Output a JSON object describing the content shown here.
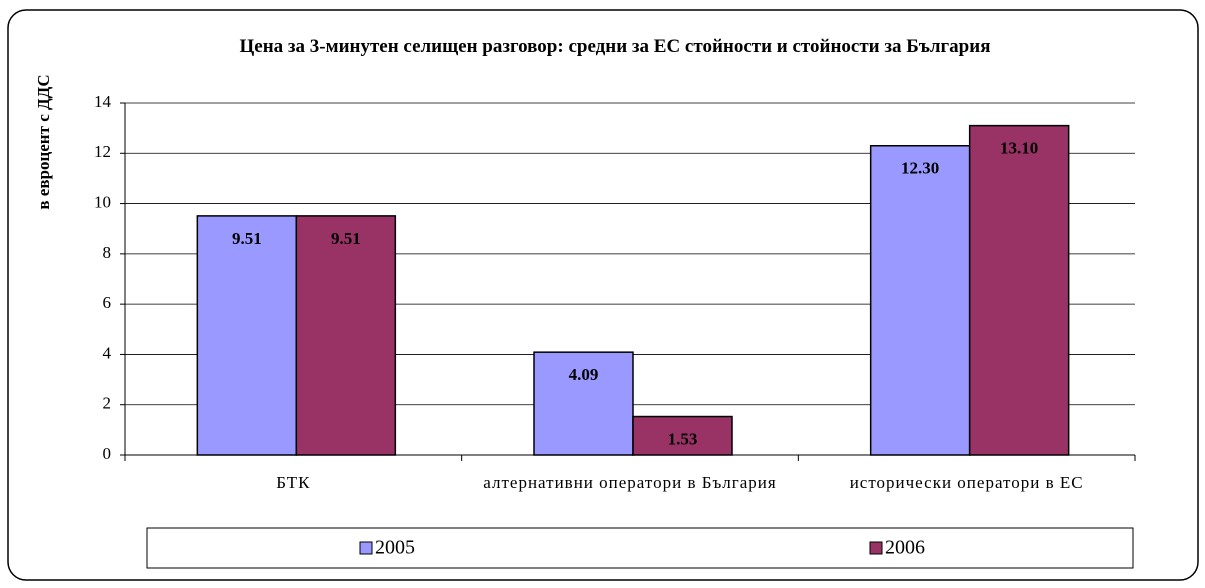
{
  "chart_data": {
    "type": "bar",
    "title": "Цена за 3-минутен селищен разговор:  средни за ЕС стойности и стойности за България",
    "y_label": "в евроцент с ДДС",
    "categories": [
      "БТК",
      "алтернативни оператори в България",
      "исторически оператори в ЕС"
    ],
    "series": [
      {
        "name": "2005",
        "color": "#9999ff",
        "values": [
          9.51,
          4.09,
          12.3
        ],
        "value_labels": [
          "9.51",
          "4.09",
          "12.30"
        ]
      },
      {
        "name": "2006",
        "color": "#993366",
        "values": [
          9.51,
          1.53,
          13.1
        ],
        "value_labels": [
          "9.51",
          "1.53",
          "13.10"
        ]
      }
    ],
    "ylim": [
      0,
      14
    ],
    "yticks": [
      0,
      2,
      4,
      6,
      8,
      10,
      12,
      14
    ],
    "grid": true,
    "legend": "bottom"
  }
}
